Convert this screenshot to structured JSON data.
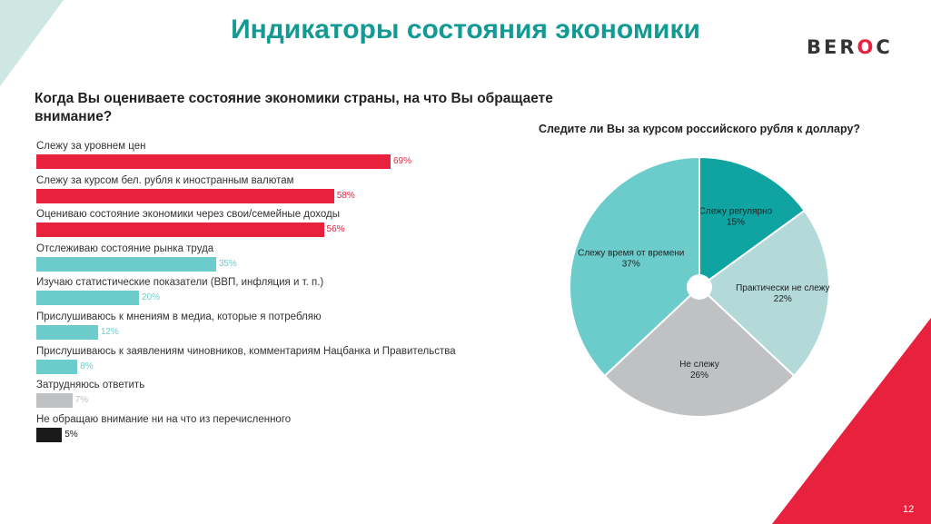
{
  "header": {
    "title": "Индикаторы состояния экономики"
  },
  "logo": {
    "text_parts": [
      "B",
      "E",
      "R",
      "O",
      "C"
    ]
  },
  "colors": {
    "teal_dark": "#0fa3a1",
    "teal": "#6ccccc",
    "teal_light": "#b3d9d9",
    "grey": "#bfc1c3",
    "red": "#e8223d",
    "black": "#1a1a1a"
  },
  "chart_data": [
    {
      "type": "bar",
      "title": "Когда Вы оцениваете состояние экономики страны, на что Вы обращаете внимание?",
      "categories": [
        "Слежу за уровнем цен",
        "Слежу за курсом бел. рубля к иностранным валютам",
        "Оцениваю состояние экономики через свои/семейные доходы",
        "Отслеживаю состояние рынка труда",
        "Изучаю статистические показатели (ВВП, инфляция и т. п.)",
        "Прислушиваюсь к мнениям в медиа, которые я потребляю",
        "Прислушиваюсь к заявлениям чиновников, комментариям Нацбанка и Правительства",
        "Затрудняюсь ответить",
        "Не обращаю внимание ни на что из перечисленного"
      ],
      "values": [
        69,
        58,
        56,
        35,
        20,
        12,
        8,
        7,
        5
      ],
      "value_labels": [
        "69%",
        "58%",
        "56%",
        "35%",
        "20%",
        "12%",
        "8%",
        "7%",
        "5%"
      ],
      "bar_colors": [
        "#e8223d",
        "#e8223d",
        "#e8223d",
        "#6ccccc",
        "#6ccccc",
        "#6ccccc",
        "#6ccccc",
        "#bfc1c3",
        "#1a1a1a"
      ],
      "label_colors": [
        "#e8223d",
        "#e8223d",
        "#e8223d",
        "#6ccccc",
        "#6ccccc",
        "#6ccccc",
        "#6ccccc",
        "#bfc1c3",
        "#1a1a1a"
      ],
      "unit": "%"
    },
    {
      "type": "pie",
      "title": "Следите ли Вы за курсом российского рубля к доллару?",
      "slices": [
        {
          "label": "Слежу регулярно",
          "value": 15,
          "value_label": "15%",
          "color": "#0fa3a1"
        },
        {
          "label": "Практически не слежу",
          "value": 22,
          "value_label": "22%",
          "color": "#b3d9d9"
        },
        {
          "label": "Не слежу",
          "value": 26,
          "value_label": "26%",
          "color": "#bfc1c3"
        },
        {
          "label": "Слежу время от времени",
          "value": 37,
          "value_label": "37%",
          "color": "#6ccccc"
        }
      ]
    }
  ],
  "page_number": "12"
}
